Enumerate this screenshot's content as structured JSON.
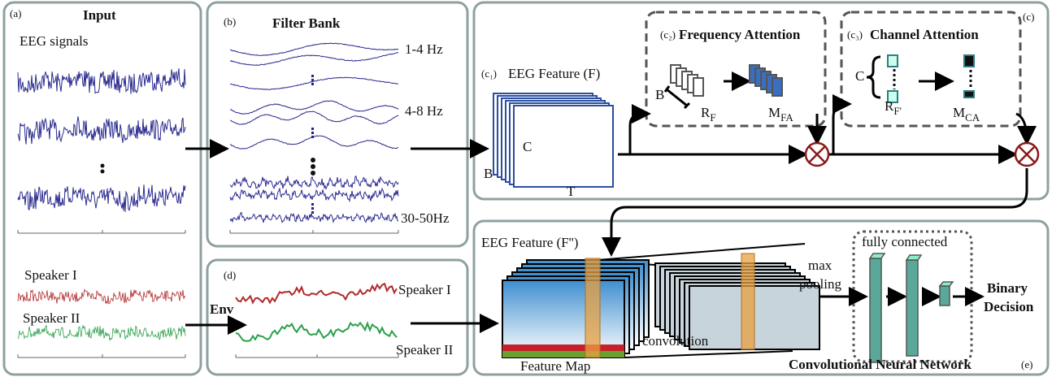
{
  "panel_a": {
    "label": "(a)",
    "title": "Input",
    "eeg_label": "EEG signals",
    "speakers": [
      "Speaker I",
      "Speaker II"
    ]
  },
  "panel_b": {
    "label": "(b)",
    "title": "Filter Bank",
    "bands": [
      "1-4 Hz",
      "4-8 Hz",
      "30-50Hz"
    ]
  },
  "env_label": "Env",
  "panel_d": {
    "label": "(d)",
    "speakers": [
      "Speaker I",
      "Speaker II"
    ]
  },
  "panel_c": {
    "label": "(c)",
    "c1_label": "(c₁)",
    "feature": "EEG Feature (F)",
    "dims": [
      "C",
      "B",
      "T"
    ],
    "freq": {
      "label": "(c₂)",
      "title": "Frequency Attention",
      "dim": "B",
      "r": {
        "main": "R",
        "sub": "F"
      },
      "m": {
        "main": "M",
        "sub": "FA"
      }
    },
    "chan": {
      "label": "(c₃)",
      "title": "Channel Attention",
      "dim": "C",
      "r": {
        "main": "R",
        "sub": "F'"
      },
      "m": {
        "main": "M",
        "sub": "CA"
      }
    }
  },
  "panel_e": {
    "label": "(e)",
    "feature": "EEG Feature (F'')",
    "feature_map": "Feature Map",
    "convolution": "convolution",
    "pooling": [
      "max",
      "pooling"
    ],
    "fc": "fully connected",
    "output": [
      "Binary",
      "Decision"
    ],
    "cnn": "Convolutional  Neural  Network"
  }
}
